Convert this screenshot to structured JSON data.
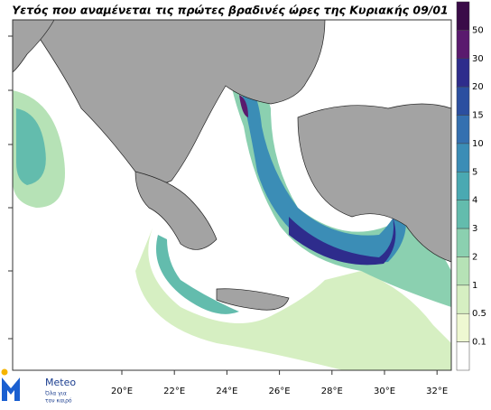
{
  "map": {
    "title": "Υετός που αναμένεται τις πρώτες βραδινές ώρες της Κυριακής 09/01",
    "lon_labels": [
      "20°E",
      "22°E",
      "24°E",
      "26°E",
      "28°E",
      "30°E",
      "32°E"
    ],
    "colorbar": {
      "levels": [
        50,
        30,
        20,
        15,
        10,
        5,
        4,
        3,
        2,
        1,
        0.5,
        0.1
      ],
      "colors": [
        "#3a0b48",
        "#5a1a6e",
        "#2e2c8c",
        "#2b4fa0",
        "#3470b0",
        "#3b8db6",
        "#4aa9b2",
        "#63bcad",
        "#8bd0b0",
        "#b6e2b6",
        "#d6efc2",
        "#eef8d2",
        "#ffffff"
      ]
    },
    "logo": {
      "name": "Meteo",
      "tagline_1": "Όλα για",
      "tagline_2": "τον καιρό"
    }
  }
}
